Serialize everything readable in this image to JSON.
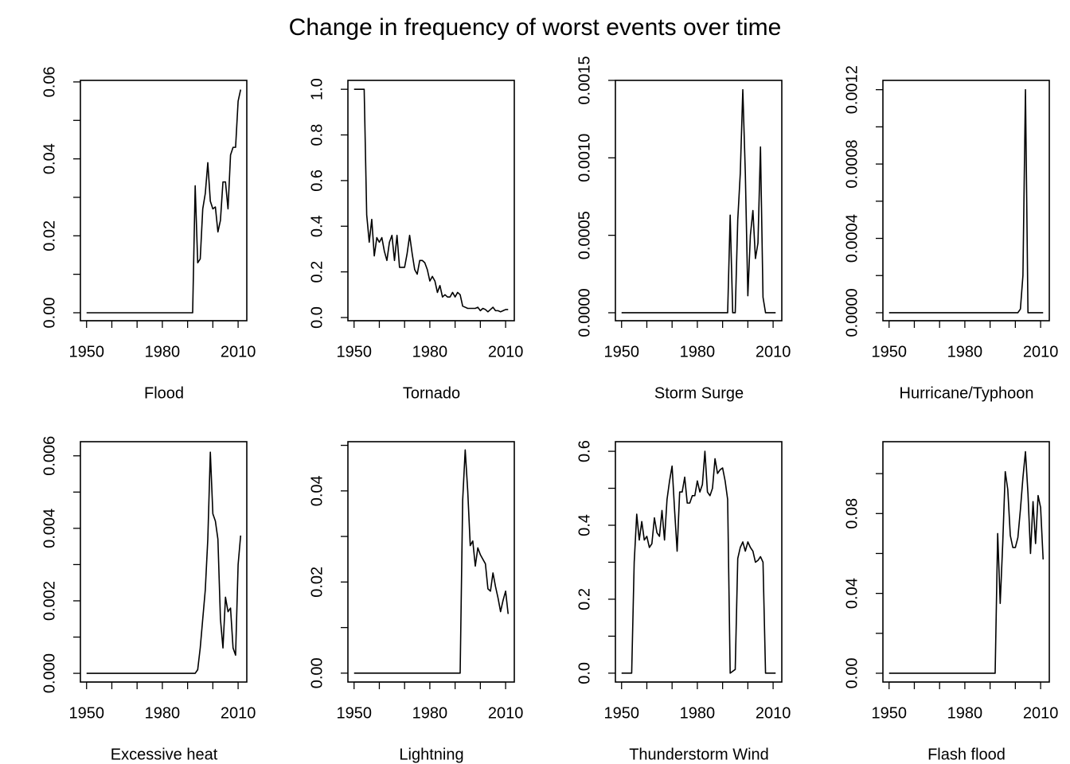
{
  "title": "Change in frequency of worst events over time",
  "chart_data": [
    {
      "type": "line",
      "xlabel": "Flood",
      "color": "#000000",
      "x": [
        1950,
        1951,
        1952,
        1953,
        1954,
        1955,
        1956,
        1957,
        1958,
        1959,
        1960,
        1961,
        1962,
        1963,
        1964,
        1965,
        1966,
        1967,
        1968,
        1969,
        1970,
        1971,
        1972,
        1973,
        1974,
        1975,
        1976,
        1977,
        1978,
        1979,
        1980,
        1981,
        1982,
        1983,
        1984,
        1985,
        1986,
        1987,
        1988,
        1989,
        1990,
        1991,
        1992,
        1993,
        1994,
        1995,
        1996,
        1997,
        1998,
        1999,
        2000,
        2001,
        2002,
        2003,
        2004,
        2005,
        2006,
        2007,
        2008,
        2009,
        2010,
        2011
      ],
      "values": [
        0,
        0,
        0,
        0,
        0,
        0,
        0,
        0,
        0,
        0,
        0,
        0,
        0,
        0,
        0,
        0,
        0,
        0,
        0,
        0,
        0,
        0,
        0,
        0,
        0,
        0,
        0,
        0,
        0,
        0,
        0,
        0,
        0,
        0,
        0,
        0,
        0,
        0,
        0,
        0,
        0,
        0,
        0,
        0.033,
        0.013,
        0.014,
        0.027,
        0.031,
        0.039,
        0.029,
        0.027,
        0.0275,
        0.021,
        0.024,
        0.034,
        0.034,
        0.027,
        0.041,
        0.043,
        0.043,
        0.055,
        0.058
      ],
      "xlim": [
        1947.56,
        2013.44
      ],
      "xticks": [
        1950,
        1980,
        2010
      ],
      "xminorticks": [
        1960,
        1970,
        1990,
        2000
      ],
      "ylim": [
        -0.00207,
        0.0604
      ],
      "yticks": [
        {
          "value": 0,
          "label": "0.00"
        },
        0.02,
        0.04,
        0.06
      ],
      "yminorticks": [
        0.01,
        0.03,
        0.05
      ]
    },
    {
      "type": "line",
      "xlabel": "Tornado",
      "color": "#000000",
      "x": [
        1950,
        1951,
        1952,
        1953,
        1954,
        1955,
        1956,
        1957,
        1958,
        1959,
        1960,
        1961,
        1962,
        1963,
        1964,
        1965,
        1966,
        1967,
        1968,
        1969,
        1970,
        1971,
        1972,
        1973,
        1974,
        1975,
        1976,
        1977,
        1978,
        1979,
        1980,
        1981,
        1982,
        1983,
        1984,
        1985,
        1986,
        1987,
        1988,
        1989,
        1990,
        1991,
        1992,
        1993,
        1994,
        1995,
        1996,
        1997,
        1998,
        1999,
        2000,
        2001,
        2002,
        2003,
        2004,
        2005,
        2006,
        2007,
        2008,
        2009,
        2010,
        2011
      ],
      "values": [
        1,
        1,
        1,
        1,
        1,
        0.45,
        0.33,
        0.43,
        0.27,
        0.35,
        0.33,
        0.35,
        0.29,
        0.25,
        0.33,
        0.36,
        0.25,
        0.36,
        0.22,
        0.22,
        0.22,
        0.28,
        0.36,
        0.28,
        0.21,
        0.19,
        0.25,
        0.25,
        0.24,
        0.21,
        0.16,
        0.18,
        0.16,
        0.11,
        0.14,
        0.09,
        0.1,
        0.09,
        0.09,
        0.11,
        0.09,
        0.11,
        0.1,
        0.05,
        0.045,
        0.04,
        0.04,
        0.04,
        0.04,
        0.045,
        0.03,
        0.04,
        0.035,
        0.025,
        0.035,
        0.045,
        0.03,
        0.03,
        0.025,
        0.03,
        0.035,
        0.035
      ],
      "xlim": [
        1947.56,
        2013.44
      ],
      "xticks": [
        1950,
        1980,
        2010
      ],
      "xminorticks": [
        1960,
        1970,
        1990,
        2000
      ],
      "ylim": [
        -0.014,
        1.039
      ],
      "yticks": [
        {
          "value": 0,
          "label": "0.0"
        },
        0.2,
        0.4,
        0.6,
        0.8,
        {
          "value": 1,
          "label": "1.0"
        }
      ],
      "yminorticks": []
    },
    {
      "type": "line",
      "xlabel": "Storm Surge",
      "color": "#000000",
      "x": [
        1950,
        1951,
        1952,
        1953,
        1954,
        1955,
        1956,
        1957,
        1958,
        1959,
        1960,
        1961,
        1962,
        1963,
        1964,
        1965,
        1966,
        1967,
        1968,
        1969,
        1970,
        1971,
        1972,
        1973,
        1974,
        1975,
        1976,
        1977,
        1978,
        1979,
        1980,
        1981,
        1982,
        1983,
        1984,
        1985,
        1986,
        1987,
        1988,
        1989,
        1990,
        1991,
        1992,
        1993,
        1994,
        1995,
        1996,
        1997,
        1998,
        1999,
        2000,
        2001,
        2002,
        2003,
        2004,
        2005,
        2006,
        2007,
        2008,
        2009,
        2010,
        2011
      ],
      "values": [
        0,
        0,
        0,
        0,
        0,
        0,
        0,
        0,
        0,
        0,
        0,
        0,
        0,
        0,
        0,
        0,
        0,
        0,
        0,
        0,
        0,
        0,
        0,
        0,
        0,
        0,
        0,
        0,
        0,
        0,
        0,
        0,
        0,
        0,
        0,
        0,
        0,
        0,
        0,
        0,
        0,
        0,
        0,
        0.00063,
        0,
        0,
        0.0006,
        0.0009,
        0.00144,
        0.0009,
        0.00011,
        0.0005,
        0.00066,
        0.00035,
        0.00045,
        0.00107,
        0.0001,
        0,
        0,
        0,
        0,
        0
      ],
      "xlim": [
        1947.56,
        2013.44
      ],
      "xticks": [
        1950,
        1980,
        2010
      ],
      "xminorticks": [
        1960,
        1970,
        1990,
        2000
      ],
      "ylim": [
        -5.15e-05,
        0.0015
      ],
      "yticks": [
        {
          "value": 0,
          "label": "0.0000"
        },
        0.0005,
        {
          "value": 0.001,
          "label": "0.0010"
        },
        0.0015
      ],
      "yminorticks": []
    },
    {
      "type": "line",
      "xlabel": "Hurricane/Typhoon",
      "color": "#000000",
      "x": [
        1950,
        1951,
        1952,
        1953,
        1954,
        1955,
        1956,
        1957,
        1958,
        1959,
        1960,
        1961,
        1962,
        1963,
        1964,
        1965,
        1966,
        1967,
        1968,
        1969,
        1970,
        1971,
        1972,
        1973,
        1974,
        1975,
        1976,
        1977,
        1978,
        1979,
        1980,
        1981,
        1982,
        1983,
        1984,
        1985,
        1986,
        1987,
        1988,
        1989,
        1990,
        1991,
        1992,
        1993,
        1994,
        1995,
        1996,
        1997,
        1998,
        1999,
        2000,
        2001,
        2002,
        2003,
        2004,
        2005,
        2006,
        2007,
        2008,
        2009,
        2010,
        2011
      ],
      "values": [
        0,
        0,
        0,
        0,
        0,
        0,
        0,
        0,
        0,
        0,
        0,
        0,
        0,
        0,
        0,
        0,
        0,
        0,
        0,
        0,
        0,
        0,
        0,
        0,
        0,
        0,
        0,
        0,
        0,
        0,
        0,
        0,
        0,
        0,
        0,
        0,
        0,
        0,
        0,
        0,
        0,
        0,
        0,
        0,
        0,
        0,
        0,
        0,
        0,
        0,
        0,
        0,
        2e-05,
        0.0002,
        0.0012,
        0,
        0,
        0,
        0,
        0,
        0,
        0
      ],
      "xlim": [
        1947.56,
        2013.44
      ],
      "xticks": [
        1950,
        1980,
        2010
      ],
      "xminorticks": [
        1960,
        1970,
        1990,
        2000
      ],
      "ylim": [
        -4.3e-05,
        0.00125
      ],
      "yticks": [
        {
          "value": 0,
          "label": "0.0000"
        },
        0.0004,
        0.0008,
        0.0012
      ],
      "yminorticks": [
        0.0002,
        0.0006,
        0.001
      ]
    },
    {
      "type": "line",
      "xlabel": "Excessive heat",
      "color": "#000000",
      "x": [
        1950,
        1951,
        1952,
        1953,
        1954,
        1955,
        1956,
        1957,
        1958,
        1959,
        1960,
        1961,
        1962,
        1963,
        1964,
        1965,
        1966,
        1967,
        1968,
        1969,
        1970,
        1971,
        1972,
        1973,
        1974,
        1975,
        1976,
        1977,
        1978,
        1979,
        1980,
        1981,
        1982,
        1983,
        1984,
        1985,
        1986,
        1987,
        1988,
        1989,
        1990,
        1991,
        1992,
        1993,
        1994,
        1995,
        1996,
        1997,
        1998,
        1999,
        2000,
        2001,
        2002,
        2003,
        2004,
        2005,
        2006,
        2007,
        2008,
        2009,
        2010,
        2011
      ],
      "values": [
        0,
        0,
        0,
        0,
        0,
        0,
        0,
        0,
        0,
        0,
        0,
        0,
        0,
        0,
        0,
        0,
        0,
        0,
        0,
        0,
        0,
        0,
        0,
        0,
        0,
        0,
        0,
        0,
        0,
        0,
        0,
        0,
        0,
        0,
        0,
        0,
        0,
        0,
        0,
        0,
        0,
        0,
        0,
        0,
        0.0001,
        0.0007,
        0.0015,
        0.0023,
        0.0037,
        0.0061,
        0.0044,
        0.0042,
        0.0037,
        0.0015,
        0.0007,
        0.0021,
        0.0017,
        0.0018,
        0.0007,
        0.0005,
        0.003,
        0.0038
      ],
      "xlim": [
        1947.56,
        2013.44
      ],
      "xticks": [
        1950,
        1980,
        2010
      ],
      "xminorticks": [
        1960,
        1970,
        1990,
        2000
      ],
      "ylim": [
        -0.00024,
        0.00639
      ],
      "yticks": [
        {
          "value": 0,
          "label": "0.000"
        },
        0.002,
        0.004,
        0.006
      ],
      "yminorticks": [
        0.001,
        0.003,
        0.005
      ]
    },
    {
      "type": "line",
      "xlabel": "Lightning",
      "color": "#000000",
      "x": [
        1950,
        1951,
        1952,
        1953,
        1954,
        1955,
        1956,
        1957,
        1958,
        1959,
        1960,
        1961,
        1962,
        1963,
        1964,
        1965,
        1966,
        1967,
        1968,
        1969,
        1970,
        1971,
        1972,
        1973,
        1974,
        1975,
        1976,
        1977,
        1978,
        1979,
        1980,
        1981,
        1982,
        1983,
        1984,
        1985,
        1986,
        1987,
        1988,
        1989,
        1990,
        1991,
        1992,
        1993,
        1994,
        1995,
        1996,
        1997,
        1998,
        1999,
        2000,
        2001,
        2002,
        2003,
        2004,
        2005,
        2006,
        2007,
        2008,
        2009,
        2010,
        2011
      ],
      "values": [
        0,
        0,
        0,
        0,
        0,
        0,
        0,
        0,
        0,
        0,
        0,
        0,
        0,
        0,
        0,
        0,
        0,
        0,
        0,
        0,
        0,
        0,
        0,
        0,
        0,
        0,
        0,
        0,
        0,
        0,
        0,
        0,
        0,
        0,
        0,
        0,
        0,
        0,
        0,
        0,
        0,
        0,
        0,
        0.038,
        0.049,
        0.04,
        0.028,
        0.029,
        0.0235,
        0.0275,
        0.026,
        0.025,
        0.024,
        0.0185,
        0.018,
        0.022,
        0.019,
        0.0165,
        0.0135,
        0.016,
        0.018,
        0.013
      ],
      "xlim": [
        1947.56,
        2013.44
      ],
      "xticks": [
        1950,
        1980,
        2010
      ],
      "xminorticks": [
        1960,
        1970,
        1990,
        2000
      ],
      "ylim": [
        -0.00195,
        0.0508
      ],
      "yticks": [
        {
          "value": 0,
          "label": "0.00"
        },
        0.02,
        0.04
      ],
      "yminorticks": [
        0.01,
        0.03,
        0.05
      ]
    },
    {
      "type": "line",
      "xlabel": "Thunderstorm Wind",
      "color": "#000000",
      "x": [
        1950,
        1951,
        1952,
        1953,
        1954,
        1955,
        1956,
        1957,
        1958,
        1959,
        1960,
        1961,
        1962,
        1963,
        1964,
        1965,
        1966,
        1967,
        1968,
        1969,
        1970,
        1971,
        1972,
        1973,
        1974,
        1975,
        1976,
        1977,
        1978,
        1979,
        1980,
        1981,
        1982,
        1983,
        1984,
        1985,
        1986,
        1987,
        1988,
        1989,
        1990,
        1991,
        1992,
        1993,
        1994,
        1995,
        1996,
        1997,
        1998,
        1999,
        2000,
        2001,
        2002,
        2003,
        2004,
        2005,
        2006,
        2007,
        2008,
        2009,
        2010,
        2011
      ],
      "values": [
        0,
        0,
        0,
        0,
        0,
        0.3,
        0.43,
        0.36,
        0.41,
        0.36,
        0.37,
        0.34,
        0.35,
        0.42,
        0.38,
        0.37,
        0.44,
        0.36,
        0.47,
        0.52,
        0.56,
        0.44,
        0.33,
        0.49,
        0.49,
        0.53,
        0.46,
        0.46,
        0.48,
        0.48,
        0.52,
        0.49,
        0.51,
        0.6,
        0.49,
        0.48,
        0.5,
        0.58,
        0.54,
        0.55,
        0.555,
        0.52,
        0.47,
        0,
        0.005,
        0.01,
        0.31,
        0.34,
        0.355,
        0.33,
        0.355,
        0.34,
        0.33,
        0.3,
        0.305,
        0.315,
        0.3,
        0,
        0,
        0,
        0,
        0
      ],
      "xlim": [
        1947.56,
        2013.44
      ],
      "xticks": [
        1950,
        1980,
        2010
      ],
      "xminorticks": [
        1960,
        1970,
        1990,
        2000
      ],
      "ylim": [
        -0.024,
        0.626
      ],
      "yticks": [
        {
          "value": 0,
          "label": "0.0"
        },
        0.2,
        0.4,
        0.6
      ],
      "yminorticks": [
        0.1,
        0.3,
        0.5
      ]
    },
    {
      "type": "line",
      "xlabel": "Flash flood",
      "color": "#000000",
      "x": [
        1950,
        1951,
        1952,
        1953,
        1954,
        1955,
        1956,
        1957,
        1958,
        1959,
        1960,
        1961,
        1962,
        1963,
        1964,
        1965,
        1966,
        1967,
        1968,
        1969,
        1970,
        1971,
        1972,
        1973,
        1974,
        1975,
        1976,
        1977,
        1978,
        1979,
        1980,
        1981,
        1982,
        1983,
        1984,
        1985,
        1986,
        1987,
        1988,
        1989,
        1990,
        1991,
        1992,
        1993,
        1994,
        1995,
        1996,
        1997,
        1998,
        1999,
        2000,
        2001,
        2002,
        2003,
        2004,
        2005,
        2006,
        2007,
        2008,
        2009,
        2010,
        2011
      ],
      "values": [
        0,
        0,
        0,
        0,
        0,
        0,
        0,
        0,
        0,
        0,
        0,
        0,
        0,
        0,
        0,
        0,
        0,
        0,
        0,
        0,
        0,
        0,
        0,
        0,
        0,
        0,
        0,
        0,
        0,
        0,
        0,
        0,
        0,
        0,
        0,
        0,
        0,
        0,
        0,
        0,
        0,
        0,
        0,
        0.07,
        0.035,
        0.065,
        0.101,
        0.092,
        0.069,
        0.063,
        0.063,
        0.068,
        0.082,
        0.098,
        0.111,
        0.09,
        0.06,
        0.086,
        0.065,
        0.089,
        0.083,
        0.057
      ],
      "xlim": [
        1947.56,
        2013.44
      ],
      "xticks": [
        1950,
        1980,
        2010
      ],
      "xminorticks": [
        1960,
        1970,
        1990,
        2000
      ],
      "ylim": [
        -0.0044,
        0.116
      ],
      "yticks": [
        {
          "value": 0,
          "label": "0.00"
        },
        0.04,
        0.08
      ],
      "yminorticks": [
        0.02,
        0.06,
        0.1
      ]
    }
  ]
}
